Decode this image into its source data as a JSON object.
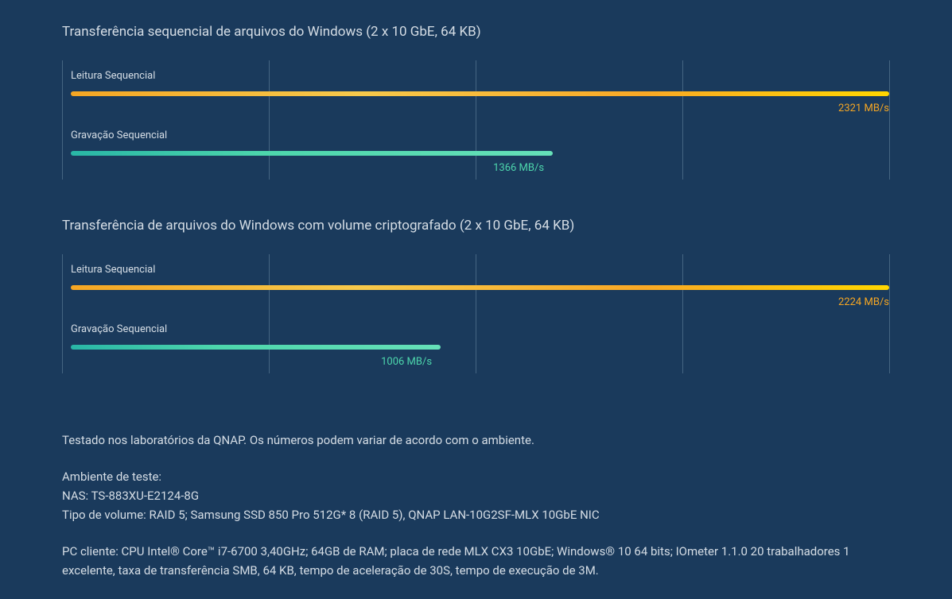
{
  "colors": {
    "background": "#1a3a5c",
    "text": "#d5dde5",
    "grid": "#456582",
    "read_value": "#f5a623",
    "write_value": "#4dd6ac",
    "read_gradient": [
      "#f5a623",
      "#f7c94b",
      "#f9a825",
      "#ffd600"
    ],
    "write_gradient": [
      "#29b6a6",
      "#4dd6ac",
      "#66e0b8"
    ]
  },
  "unit": "MB/s",
  "axis": {
    "max": 2321,
    "grid_segments": 4
  },
  "charts": [
    {
      "title": "Transferência sequencial de arquivos do Windows (2 x 10 GbE, 64 KB)",
      "bars": [
        {
          "label": "Leitura Sequencial",
          "value": 2321,
          "percent": 100,
          "type": "read"
        },
        {
          "label": "Gravação Sequencial",
          "value": 1366,
          "percent": 58.9,
          "type": "write"
        }
      ]
    },
    {
      "title": "Transferência de arquivos do Windows com volume criptografado (2 x 10 GbE, 64 KB)",
      "bars": [
        {
          "label": "Leitura Sequencial",
          "value": 2224,
          "percent": 100,
          "type": "read"
        },
        {
          "label": "Gravação Sequencial",
          "value": 1006,
          "percent": 45.2,
          "type": "write"
        }
      ]
    }
  ],
  "notes": {
    "disclaimer": "Testado nos laboratórios da QNAP. Os números podem variar de acordo com o ambiente.",
    "env_title": "Ambiente de teste:",
    "env_nas": "NAS: TS-883XU-E2124-8G",
    "env_volume": "Tipo de volume: RAID 5; Samsung SSD 850 Pro 512G* 8 (RAID 5), QNAP LAN-10G2SF-MLX 10GbE NIC",
    "client": "PC cliente: CPU Intel® Core™ i7-6700 3,40GHz; 64GB de RAM; placa de rede MLX CX3 10GbE; Windows® 10 64 bits; IOmeter 1.1.0 20 trabalhadores 1 excelente, taxa de transferência SMB, 64 KB, tempo de aceleração de 30S, tempo de execução de 3M."
  }
}
